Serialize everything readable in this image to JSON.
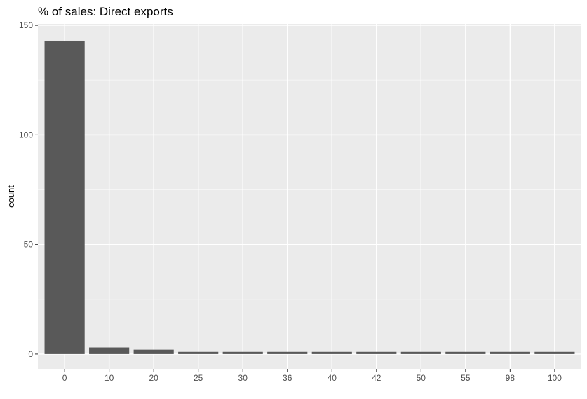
{
  "chart_data": {
    "type": "bar",
    "title": "% of sales: Direct exports",
    "xlabel": "",
    "ylabel": "count",
    "categories": [
      "0",
      "10",
      "20",
      "25",
      "30",
      "36",
      "40",
      "42",
      "50",
      "55",
      "98",
      "100"
    ],
    "values": [
      143,
      3,
      2,
      1,
      1,
      1,
      1,
      1,
      1,
      1,
      1,
      1
    ],
    "ylim": [
      0,
      150
    ],
    "yticks": [
      0,
      50,
      100,
      150
    ],
    "grid": true,
    "legend": "none",
    "colors": {
      "bar": "#595959",
      "panel": "#ebebeb",
      "grid_major": "#ffffff",
      "grid_minor": "#f5f5f5"
    }
  }
}
